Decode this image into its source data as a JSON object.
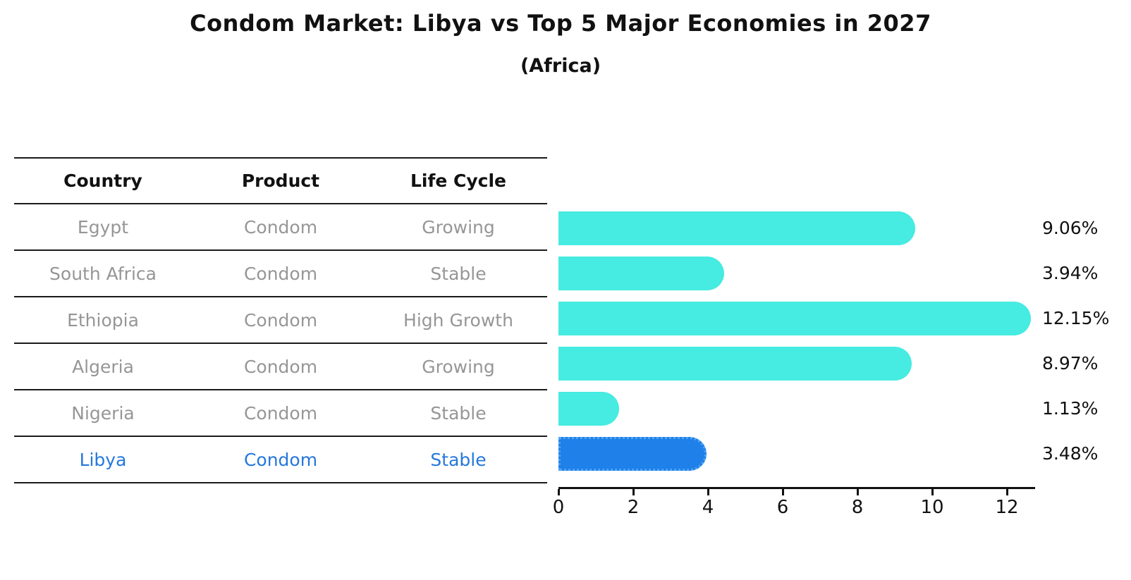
{
  "title": "Condom Market: Libya vs Top 5 Major Economies in 2027",
  "subtitle": "(Africa)",
  "table": {
    "headers": [
      "Country",
      "Product",
      "Life Cycle"
    ],
    "rows": [
      {
        "country": "Egypt",
        "product": "Condom",
        "life_cycle": "Growing",
        "highlight": false
      },
      {
        "country": "South Africa",
        "product": "Condom",
        "life_cycle": "Stable",
        "highlight": false
      },
      {
        "country": "Ethiopia",
        "product": "Condom",
        "life_cycle": "High Growth",
        "highlight": false
      },
      {
        "country": "Algeria",
        "product": "Condom",
        "life_cycle": "Growing",
        "highlight": false
      },
      {
        "country": "Nigeria",
        "product": "Condom",
        "life_cycle": "Stable",
        "highlight": false
      },
      {
        "country": "Libya",
        "product": "Condom",
        "life_cycle": "Stable",
        "highlight": true
      }
    ]
  },
  "chart_data": {
    "type": "bar",
    "orientation": "horizontal",
    "title": "Condom Market: Libya vs Top 5 Major Economies in 2027",
    "subtitle": "(Africa)",
    "categories": [
      "Egypt",
      "South Africa",
      "Ethiopia",
      "Algeria",
      "Nigeria",
      "Libya"
    ],
    "values": [
      9.06,
      3.94,
      12.15,
      8.97,
      1.13,
      3.48
    ],
    "value_labels": [
      "9.06%",
      "3.94%",
      "12.15%",
      "8.97%",
      "1.13%",
      "3.48%"
    ],
    "unit": "%",
    "x_ticks": [
      0,
      2,
      4,
      6,
      8,
      10,
      12
    ],
    "xlim": [
      0,
      12.8
    ],
    "xlabel": "",
    "ylabel": "",
    "grid": false,
    "legend": false,
    "highlight_index": 5,
    "highlight_category": "Libya"
  },
  "colors": {
    "background": "#ffffff",
    "bar": "#46EBE1",
    "highlight_bar": "#1E80E8",
    "highlight_bar_edge": "#4DA3F5",
    "highlight_text": "#2478DC",
    "row_text": "#969696",
    "heading_text": "#111111",
    "axis": "#111111",
    "divider": "#1a1a1a"
  }
}
